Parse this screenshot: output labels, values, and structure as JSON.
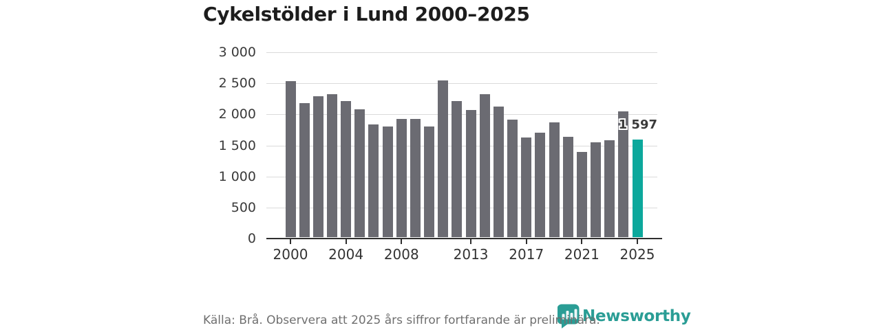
{
  "title": "Cykelstölder i Lund 2000–2025",
  "chart_data": {
    "type": "bar",
    "title": "Cykelstölder i Lund 2000–2025",
    "xlabel": "",
    "ylabel": "",
    "ylim": [
      0,
      3000
    ],
    "grid": true,
    "categories": [
      2000,
      2001,
      2002,
      2003,
      2004,
      2005,
      2006,
      2007,
      2008,
      2009,
      2010,
      2011,
      2012,
      2013,
      2014,
      2015,
      2016,
      2017,
      2018,
      2019,
      2020,
      2021,
      2022,
      2023,
      2024,
      2025
    ],
    "values": [
      2540,
      2180,
      2290,
      2330,
      2210,
      2080,
      1840,
      1800,
      1930,
      1930,
      1800,
      2550,
      2210,
      2070,
      2330,
      2130,
      1920,
      1630,
      1700,
      1870,
      1640,
      1390,
      1550,
      1580,
      2050,
      1597
    ],
    "highlight_index": 25,
    "highlight_label": "1 597",
    "y_tick_values": [
      3000,
      2500,
      2000,
      1500,
      1000,
      500,
      0
    ],
    "y_tick_labels": [
      "3 000",
      "2 500",
      "2 000",
      "1 500",
      "1 000",
      "500",
      "0"
    ],
    "x_tick_years": [
      2000,
      2004,
      2008,
      2013,
      2017,
      2021,
      2025
    ],
    "bar_color": "#6b6b72",
    "highlight_color": "#0ca89c",
    "gridline_color": "#dadada",
    "axis_color": "#2e2e2e"
  },
  "footer": {
    "source_note": "Källa: Brå. Observera att 2025 års siffror fortfarande är preliminära."
  },
  "logo": {
    "text": "Newsworthy",
    "color": "#2a9d95",
    "icon": "newsworthy-bubble-chart-icon"
  }
}
